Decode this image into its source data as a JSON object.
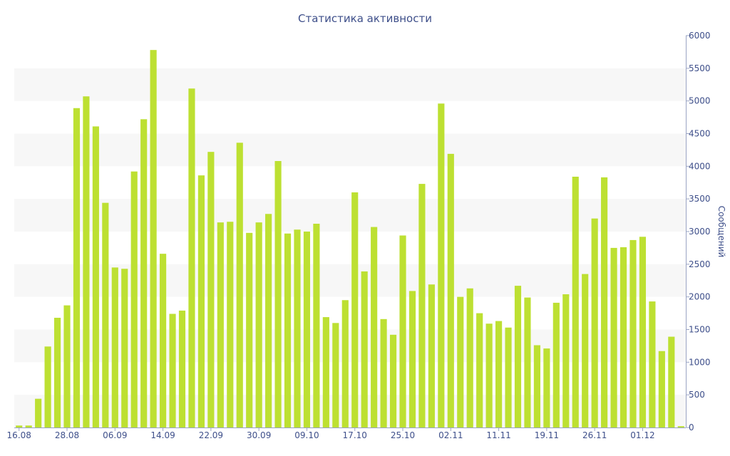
{
  "chart_data": {
    "type": "bar",
    "title": "Статистика активности",
    "ylabel": "Сообщений",
    "xlabel": "",
    "ylim": [
      0,
      6000
    ],
    "y_ticks": [
      0,
      500,
      1000,
      1500,
      2000,
      2500,
      3000,
      3500,
      4000,
      4500,
      5000,
      5500,
      6000
    ],
    "x_tick_labels": [
      "16.08",
      "28.08",
      "06.09",
      "14.09",
      "22.09",
      "30.09",
      "09.10",
      "17.10",
      "25.10",
      "02.11",
      "11.11",
      "19.11",
      "26.11",
      "01.12"
    ],
    "x_tick_bar_index": [
      0,
      5,
      10,
      15,
      20,
      25,
      30,
      35,
      40,
      45,
      50,
      55,
      60,
      65
    ],
    "grid": "horizontal alternating bands",
    "y_axis_position": "right",
    "bar_color": "#bde032",
    "values": [
      30,
      30,
      440,
      1240,
      1680,
      1870,
      4890,
      5070,
      4610,
      3440,
      2450,
      2430,
      3920,
      4720,
      5780,
      2660,
      1740,
      1790,
      5190,
      3860,
      4220,
      3140,
      3150,
      4360,
      2980,
      3140,
      3270,
      4080,
      2970,
      3030,
      3000,
      3120,
      1690,
      1600,
      1950,
      3600,
      2390,
      3070,
      1660,
      1420,
      2940,
      2090,
      3730,
      2190,
      4960,
      4190,
      2000,
      2130,
      1750,
      1590,
      1630,
      1530,
      2170,
      1990,
      1260,
      1210,
      1910,
      2040,
      3840,
      2350,
      3200,
      3830,
      2750,
      2760,
      2870,
      2920,
      1930,
      1170,
      1390,
      20
    ]
  }
}
